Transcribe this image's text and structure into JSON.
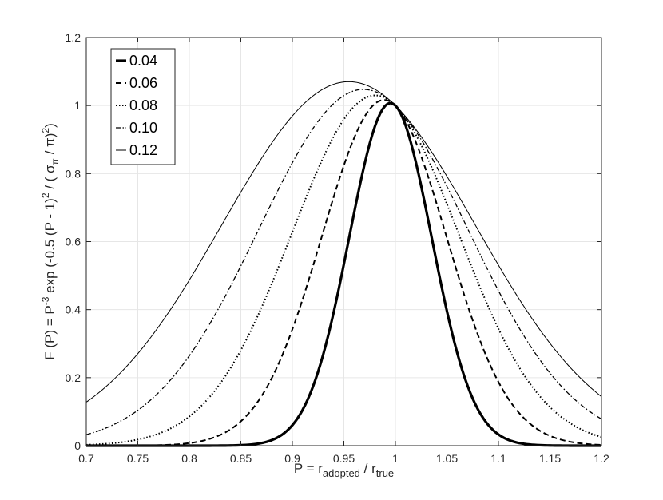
{
  "chart_data": {
    "type": "line",
    "title": "",
    "xlabel": {
      "base": "P = r",
      "sub1": "adopted",
      "mid": " / r",
      "sub2": "true"
    },
    "ylabel": {
      "p1": "F (P) = P",
      "sup1": "-3",
      "p2": " exp (-0.5 (P - 1)",
      "sup2": "2",
      "p3": " / ( σ",
      "sub": "π",
      "p4": " / π)",
      "sup3": "2",
      "p5": ")"
    },
    "xlim": [
      0.7,
      1.2
    ],
    "ylim": [
      0,
      1.2
    ],
    "xticks": [
      "0.7",
      "0.75",
      "0.8",
      "0.85",
      "0.9",
      "0.95",
      "1",
      "1.05",
      "1.1",
      "1.15",
      "1.2"
    ],
    "yticks": [
      "0",
      "0.2",
      "0.4",
      "0.6",
      "0.8",
      "1",
      "1.2"
    ],
    "grid": true,
    "legend_position": "top-left",
    "series": [
      {
        "name": "0.04",
        "sigma": 0.04,
        "style": "solid-thick"
      },
      {
        "name": "0.06",
        "sigma": 0.06,
        "style": "dashed"
      },
      {
        "name": "0.08",
        "sigma": 0.08,
        "style": "dotted"
      },
      {
        "name": "0.10",
        "sigma": 0.1,
        "style": "dashdot"
      },
      {
        "name": "0.12",
        "sigma": 0.12,
        "style": "solid-thin"
      }
    ],
    "x_sample_step": 0.0025
  }
}
